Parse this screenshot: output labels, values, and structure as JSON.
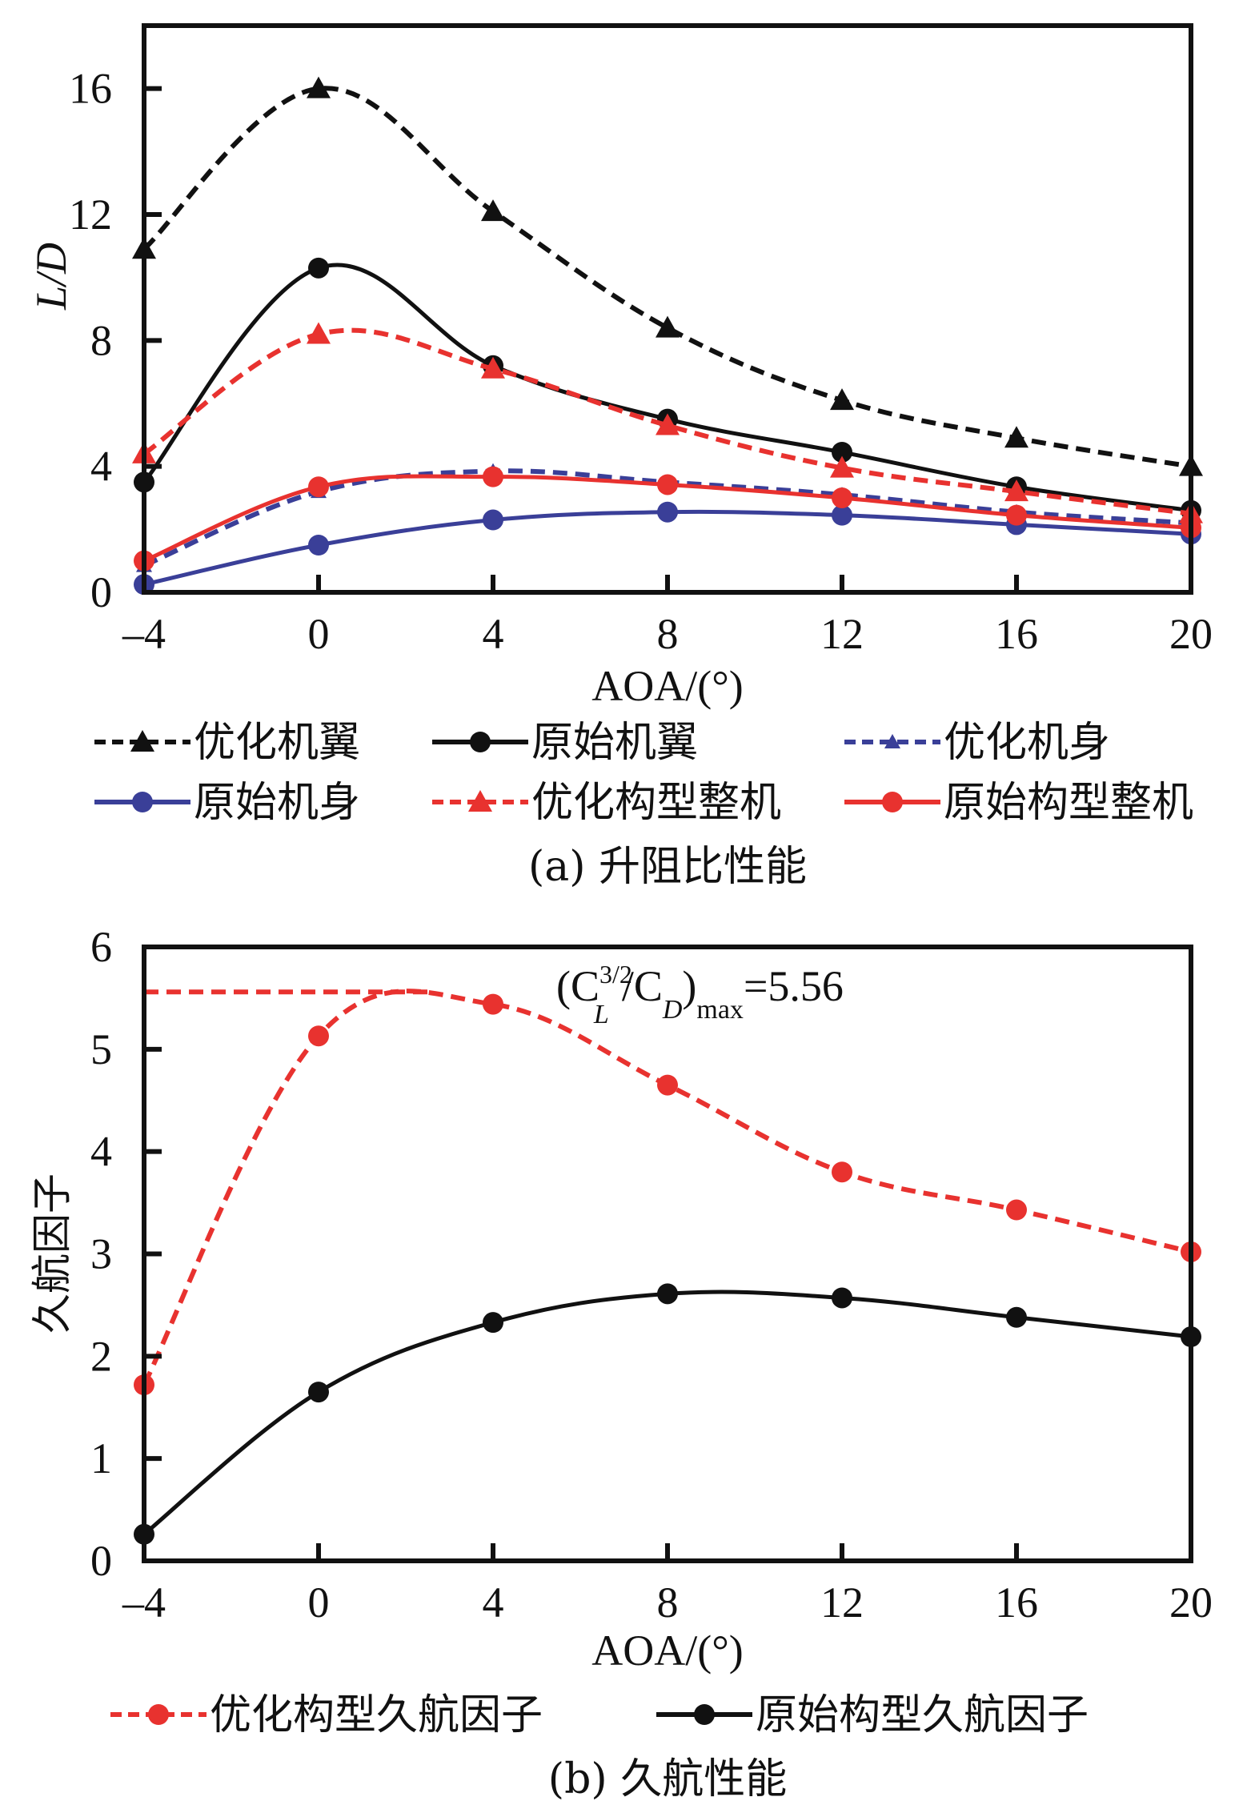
{
  "colors": {
    "black": "#111111",
    "red": "#e8322f",
    "blue": "#3a3f98"
  },
  "chart_data": [
    {
      "id": "a",
      "type": "line",
      "title": "",
      "caption": "(a) 升阻比性能",
      "xlabel": "AOA/(°)",
      "ylabel": "L/D",
      "x": [
        -4,
        0,
        4,
        8,
        12,
        16,
        20
      ],
      "xlim": [
        -4,
        20
      ],
      "ylim": [
        0,
        18
      ],
      "xticks": [
        "-4",
        "0",
        "4",
        "8",
        "12",
        "16",
        "20"
      ],
      "xtick_labels": [
        "–4",
        "0",
        "4",
        "8",
        "12",
        "16",
        "20"
      ],
      "yticks": [
        0,
        4,
        8,
        12,
        16
      ],
      "grid": false,
      "legend_placement": "bottom",
      "series": [
        {
          "name": "优化机翼",
          "color": "black",
          "dash": true,
          "marker": "triangle",
          "values": [
            10.9,
            16.0,
            12.1,
            8.4,
            6.1,
            4.9,
            4.0
          ]
        },
        {
          "name": "原始机翼",
          "color": "black",
          "dash": false,
          "marker": "circle",
          "values": [
            3.5,
            10.3,
            7.2,
            5.5,
            4.45,
            3.35,
            2.6
          ]
        },
        {
          "name": "优化机身",
          "color": "blue",
          "dash": true,
          "marker": "triangle-small",
          "values": [
            0.85,
            3.2,
            3.85,
            3.5,
            3.1,
            2.55,
            2.2
          ]
        },
        {
          "name": "原始机身",
          "color": "blue",
          "dash": false,
          "marker": "circle",
          "values": [
            0.25,
            1.5,
            2.3,
            2.55,
            2.45,
            2.15,
            1.85
          ]
        },
        {
          "name": "优化构型整机",
          "color": "red",
          "dash": true,
          "marker": "triangle",
          "values": [
            4.4,
            8.2,
            7.1,
            5.3,
            3.95,
            3.2,
            2.5
          ]
        },
        {
          "name": "原始构型整机",
          "color": "red",
          "dash": false,
          "marker": "circle",
          "values": [
            1.0,
            3.35,
            3.67,
            3.42,
            3.0,
            2.45,
            2.05
          ]
        }
      ]
    },
    {
      "id": "b",
      "type": "line",
      "title": "",
      "caption": "(b) 久航性能",
      "xlabel": "AOA/(°)",
      "ylabel": "久航因子",
      "x": [
        -4,
        0,
        4,
        8,
        12,
        16,
        20
      ],
      "xlim": [
        -4,
        20
      ],
      "ylim": [
        0,
        6
      ],
      "xtick_labels": [
        "–4",
        "0",
        "4",
        "8",
        "12",
        "16",
        "20"
      ],
      "yticks": [
        0,
        1,
        2,
        3,
        4,
        5,
        6
      ],
      "grid": false,
      "legend_placement": "bottom",
      "annotation": {
        "text": "(C_L^{3/2}/C_D)_max=5.56",
        "value": 5.56,
        "reference_line_x_range": [
          -4,
          2.5
        ]
      },
      "series": [
        {
          "name": "优化构型久航因子",
          "color": "red",
          "dash": true,
          "marker": "circle",
          "values": [
            1.72,
            5.13,
            5.44,
            4.65,
            3.8,
            3.43,
            3.02
          ]
        },
        {
          "name": "原始构型久航因子",
          "color": "black",
          "dash": false,
          "marker": "circle",
          "values": [
            0.26,
            1.65,
            2.33,
            2.61,
            2.57,
            2.38,
            2.19
          ]
        }
      ]
    }
  ],
  "annotation_parts": {
    "open": "(C",
    "sup": "3/2",
    "sub_l": "L",
    "mid": "/C",
    "sub_d": "D",
    "close": ")",
    "sub_max": "max",
    "eq": "=5.56"
  }
}
